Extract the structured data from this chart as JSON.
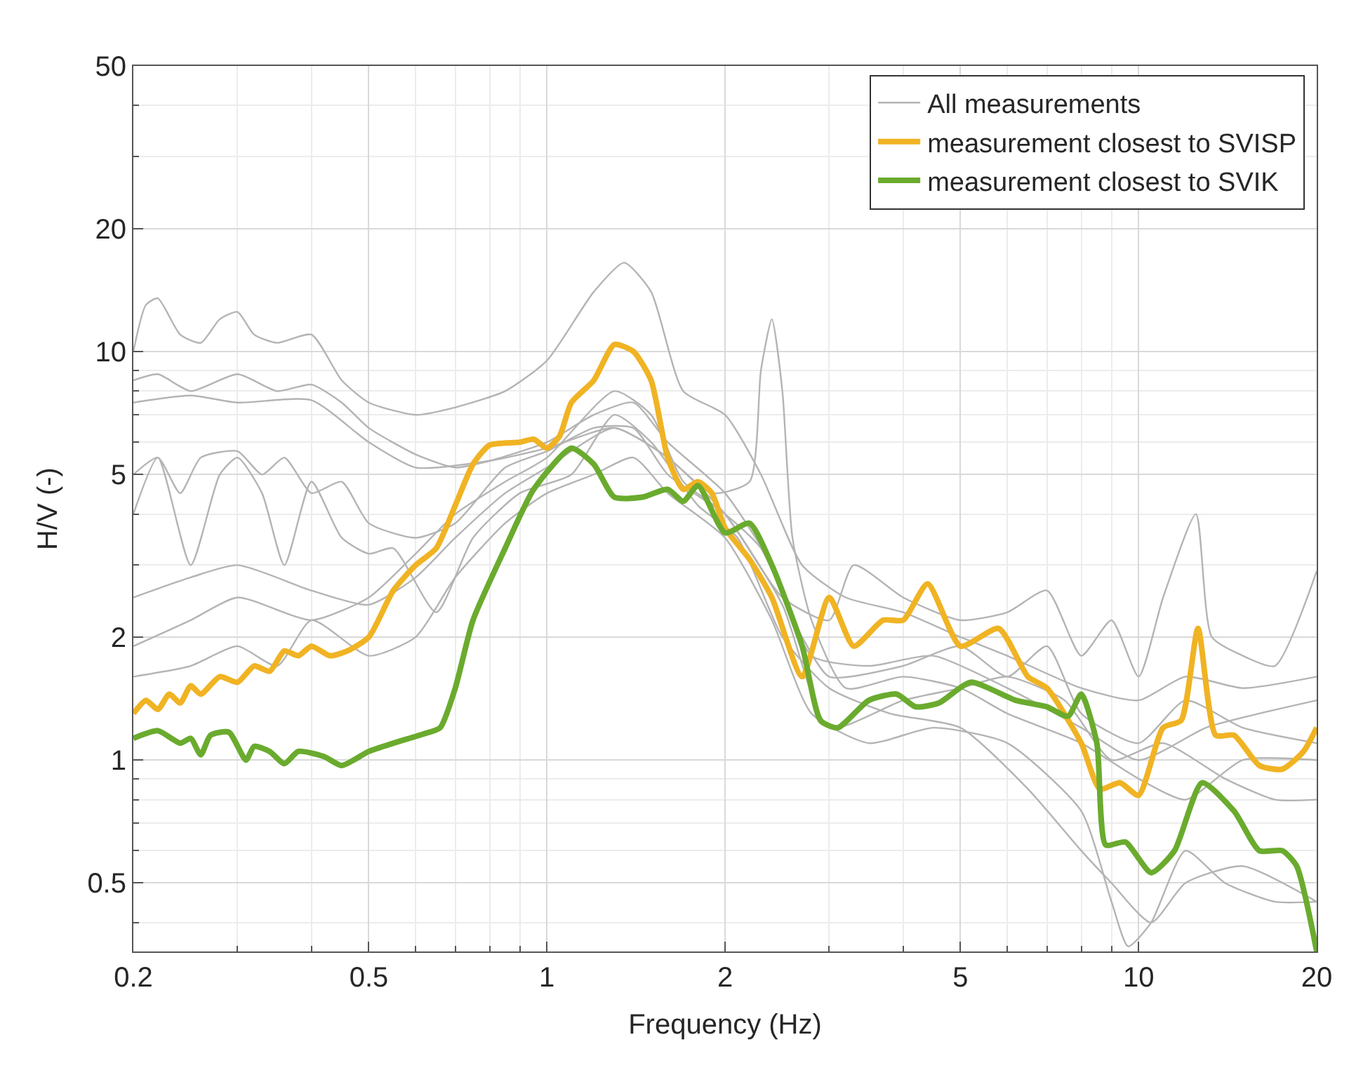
{
  "chart_data": {
    "type": "line",
    "xlabel": "Frequency (Hz)",
    "ylabel": "H/V (-)",
    "log": "xy",
    "grid": true,
    "legend": "top right",
    "marker": "none",
    "line_style": "solid",
    "xlim": [
      0.2,
      20
    ],
    "xticks": [
      0.2,
      0.5,
      1,
      2,
      5,
      10,
      20
    ],
    "ylim": [
      0.34,
      50
    ],
    "yticks": [
      0.5,
      1,
      2,
      5,
      10,
      20,
      50
    ],
    "series": [
      {
        "name": "All measurements",
        "color": "#b4b4b4",
        "x": [
          0.2,
          0.21,
          0.22,
          0.24,
          0.26,
          0.28,
          0.3,
          0.32,
          0.35,
          0.4,
          0.45,
          0.5,
          0.6,
          0.7,
          0.85,
          1.0,
          1.2,
          1.35,
          1.5,
          1.7,
          2.0,
          2.3,
          2.7,
          3.2,
          4,
          5,
          6,
          8,
          10,
          12,
          15,
          20
        ],
        "values": [
          10,
          13,
          13.5,
          11,
          10.5,
          12,
          12.5,
          11,
          10.5,
          11,
          8.5,
          7.5,
          7,
          7.3,
          8,
          9.5,
          14,
          16.5,
          14,
          8,
          7,
          5,
          3,
          2.5,
          2.3,
          2,
          1.8,
          1.5,
          1.4,
          1.6,
          1.5,
          1.6
        ]
      },
      {
        "color": "#b4b4b4",
        "x": [
          0.2,
          0.22,
          0.25,
          0.3,
          0.35,
          0.4,
          0.45,
          0.5,
          0.6,
          0.7,
          0.8,
          1.0,
          1.2,
          1.4,
          1.6,
          2.0,
          2.4,
          2.8,
          3.5,
          4.5,
          6,
          8,
          10,
          13,
          16,
          20
        ],
        "values": [
          8.5,
          8.8,
          8,
          8.8,
          8,
          8.3,
          7.5,
          6.5,
          5.6,
          5.2,
          5.4,
          6.0,
          7,
          7.5,
          6,
          4.5,
          3,
          1.8,
          1.7,
          1.8,
          1.5,
          1.2,
          1.0,
          1.2,
          1.3,
          1.4
        ]
      },
      {
        "color": "#b4b4b4",
        "x": [
          0.2,
          0.22,
          0.24,
          0.26,
          0.3,
          0.33,
          0.36,
          0.4,
          0.45,
          0.5,
          0.6,
          0.7,
          0.85,
          1.0,
          1.2,
          1.4,
          1.6,
          2.0,
          2.3,
          2.7,
          3,
          4,
          5,
          6,
          7,
          8,
          10,
          12,
          15,
          20
        ],
        "values": [
          5,
          5.5,
          4.5,
          5.5,
          5.7,
          5,
          5.5,
          4.5,
          4.8,
          3.8,
          3.5,
          3.8,
          5.2,
          5.7,
          6.5,
          6.5,
          5,
          4,
          3.3,
          2,
          1.6,
          1.7,
          1.9,
          1.6,
          1.9,
          1.3,
          1.1,
          1.4,
          1.2,
          1.1
        ]
      },
      {
        "color": "#b4b4b4",
        "x": [
          0.2,
          0.25,
          0.3,
          0.4,
          0.5,
          0.6,
          0.7,
          0.85,
          1.0,
          1.3,
          1.6,
          1.9,
          2.2,
          2.3,
          2.4,
          2.5,
          2.6,
          2.8,
          3.2,
          4,
          5,
          6,
          8,
          10,
          12,
          15,
          20
        ],
        "values": [
          2.5,
          2.8,
          3,
          2.6,
          2.4,
          2.8,
          3.5,
          4.5,
          5.2,
          6.5,
          5.5,
          4.5,
          4.8,
          9,
          12,
          8,
          3.5,
          2.2,
          1.5,
          1.6,
          1.5,
          1.3,
          1.1,
          0.9,
          0.8,
          1,
          1.0
        ]
      },
      {
        "color": "#b4b4b4",
        "x": [
          0.2,
          0.25,
          0.3,
          0.35,
          0.4,
          0.5,
          0.6,
          0.7,
          0.85,
          1.0,
          1.2,
          1.4,
          1.6,
          2.0,
          2.4,
          2.8,
          3.5,
          4.5,
          6,
          8,
          9,
          9.6,
          10.5,
          12,
          14,
          17,
          20
        ],
        "values": [
          1.6,
          1.7,
          1.9,
          1.7,
          2.2,
          1.8,
          2.0,
          2.8,
          3.8,
          4.5,
          5,
          5.5,
          4.5,
          3.5,
          2.2,
          1.3,
          1.1,
          1.2,
          1.1,
          0.75,
          0.45,
          0.35,
          0.4,
          0.6,
          0.5,
          0.45,
          0.45
        ]
      },
      {
        "color": "#b4b4b4",
        "x": [
          0.2,
          0.22,
          0.25,
          0.28,
          0.3,
          0.33,
          0.36,
          0.4,
          0.45,
          0.5,
          0.55,
          0.65,
          0.75,
          0.9,
          1.1,
          1.3,
          1.5,
          1.8,
          2.1,
          2.5,
          3,
          3.8,
          5,
          6.5,
          8,
          9,
          10.5,
          12,
          15,
          20
        ],
        "values": [
          4,
          5.5,
          3,
          5,
          5.5,
          4.5,
          3,
          4.8,
          3.5,
          3.2,
          3.3,
          2.3,
          3.5,
          4.5,
          5,
          7,
          6,
          4.2,
          3.5,
          2,
          1.5,
          1.3,
          1.2,
          0.85,
          0.6,
          0.5,
          0.4,
          0.5,
          0.55,
          0.45
        ]
      },
      {
        "color": "#b4b4b4",
        "x": [
          0.2,
          0.25,
          0.3,
          0.4,
          0.5,
          0.6,
          0.7,
          0.85,
          1.0,
          1.3,
          1.5,
          1.7,
          2.0,
          2.5,
          3,
          3.3,
          4,
          5,
          6,
          7,
          8,
          9,
          10,
          11,
          12.5,
          13.3,
          15,
          17,
          20
        ],
        "values": [
          1.9,
          2.2,
          2.5,
          2.2,
          2.5,
          3.2,
          4,
          4.8,
          5.5,
          8,
          7,
          4.8,
          4,
          2.5,
          2.2,
          3,
          2.5,
          2.2,
          2.3,
          2.6,
          1.8,
          2.2,
          1.6,
          2.5,
          4,
          2,
          1.8,
          1.7,
          2.9
        ]
      },
      {
        "color": "#b4b4b4",
        "x": [
          0.2,
          0.25,
          0.3,
          0.4,
          0.5,
          0.6,
          0.8,
          1.0,
          1.3,
          1.6,
          2.0,
          2.5,
          3,
          4,
          5,
          6,
          7.5,
          9,
          11,
          14,
          17,
          20
        ],
        "values": [
          7.5,
          7.8,
          7.5,
          7.6,
          6,
          5.2,
          5.4,
          5.8,
          6.5,
          5.5,
          4,
          2.4,
          1.2,
          1.4,
          1.5,
          1.6,
          1.4,
          1.0,
          1.1,
          0.9,
          0.8,
          0.8
        ]
      },
      {
        "name": "measurement closest to SVISP",
        "color": "#f0b323",
        "x": [
          0.2,
          0.21,
          0.22,
          0.23,
          0.24,
          0.25,
          0.26,
          0.28,
          0.3,
          0.32,
          0.34,
          0.36,
          0.38,
          0.4,
          0.43,
          0.46,
          0.5,
          0.55,
          0.6,
          0.65,
          0.7,
          0.75,
          0.8,
          0.9,
          0.95,
          1.0,
          1.05,
          1.1,
          1.2,
          1.3,
          1.4,
          1.5,
          1.6,
          1.7,
          1.8,
          1.9,
          2.0,
          2.2,
          2.4,
          2.7,
          3.0,
          3.3,
          3.7,
          4.0,
          4.4,
          5.0,
          5.8,
          6.5,
          7.0,
          8.0,
          8.6,
          9.3,
          10.0,
          11.0,
          11.8,
          12.6,
          13.5,
          14.5,
          16,
          17.5,
          19,
          20
        ],
        "values": [
          1.3,
          1.4,
          1.33,
          1.45,
          1.38,
          1.52,
          1.45,
          1.6,
          1.55,
          1.7,
          1.65,
          1.85,
          1.8,
          1.9,
          1.8,
          1.85,
          2.0,
          2.6,
          3.0,
          3.3,
          4.2,
          5.3,
          5.9,
          6.0,
          6.1,
          5.8,
          6.2,
          7.5,
          8.5,
          10.4,
          10.0,
          8.5,
          5.5,
          4.6,
          4.8,
          4.5,
          3.7,
          3.1,
          2.5,
          1.6,
          2.5,
          1.9,
          2.2,
          2.2,
          2.7,
          1.9,
          2.1,
          1.6,
          1.5,
          1.1,
          0.85,
          0.88,
          0.82,
          1.2,
          1.25,
          2.1,
          1.15,
          1.15,
          0.97,
          0.95,
          1.05,
          1.2
        ]
      },
      {
        "name": "measurement closest to SVIK",
        "color": "#6aab2e",
        "x": [
          0.2,
          0.22,
          0.24,
          0.25,
          0.26,
          0.27,
          0.29,
          0.31,
          0.32,
          0.34,
          0.36,
          0.38,
          0.42,
          0.45,
          0.5,
          0.55,
          0.62,
          0.66,
          0.7,
          0.75,
          0.85,
          0.95,
          1.1,
          1.2,
          1.3,
          1.45,
          1.6,
          1.7,
          1.8,
          2.0,
          2.2,
          2.4,
          2.7,
          2.9,
          3.1,
          3.5,
          3.9,
          4.2,
          4.6,
          5.2,
          6.2,
          7.0,
          7.6,
          8.0,
          8.5,
          8.8,
          9.5,
          10.5,
          11.5,
          12.8,
          14.5,
          16,
          17.5,
          18.5,
          20
        ],
        "values": [
          1.13,
          1.18,
          1.1,
          1.13,
          1.03,
          1.15,
          1.17,
          1.0,
          1.08,
          1.05,
          0.98,
          1.05,
          1.02,
          0.97,
          1.05,
          1.1,
          1.16,
          1.2,
          1.5,
          2.2,
          3.3,
          4.6,
          5.8,
          5.3,
          4.4,
          4.4,
          4.6,
          4.3,
          4.7,
          3.6,
          3.8,
          3.0,
          1.9,
          1.25,
          1.2,
          1.4,
          1.45,
          1.35,
          1.38,
          1.55,
          1.4,
          1.35,
          1.28,
          1.45,
          1.1,
          0.62,
          0.63,
          0.53,
          0.6,
          0.88,
          0.75,
          0.6,
          0.6,
          0.55,
          0.34
        ]
      }
    ]
  }
}
